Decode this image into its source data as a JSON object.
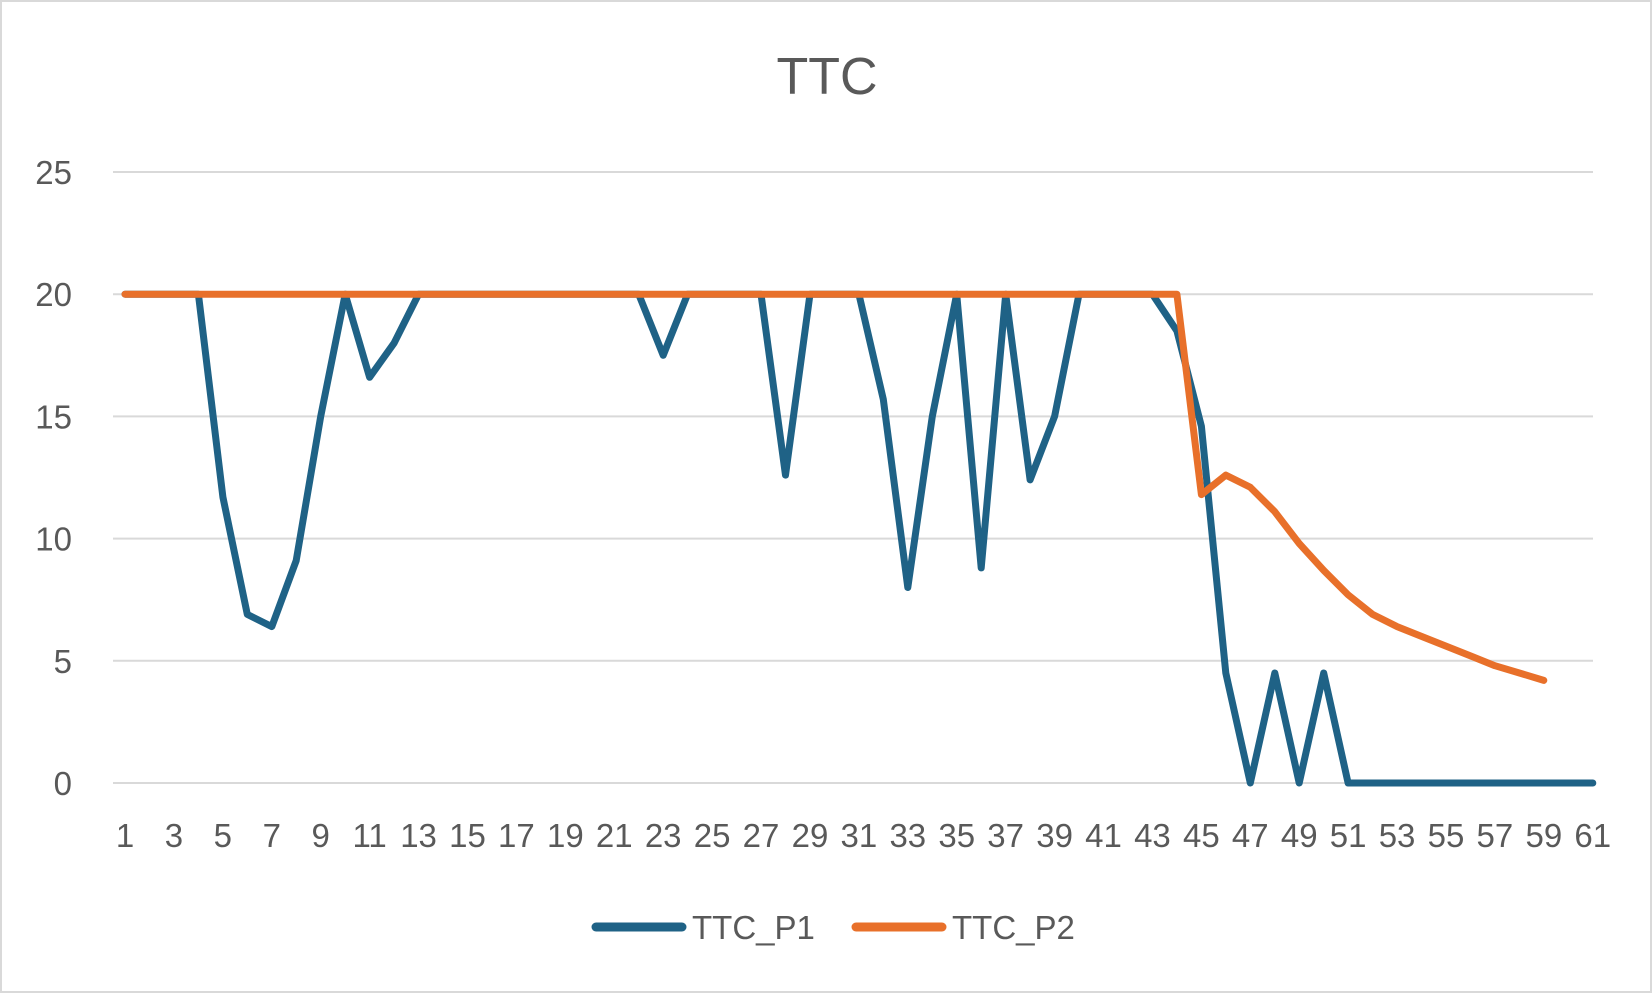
{
  "chart_data": {
    "type": "line",
    "title": "TTC",
    "xlabel": "",
    "ylabel": "",
    "ylim": [
      0,
      25
    ],
    "yticks": [
      0,
      5,
      10,
      15,
      20,
      25
    ],
    "x": [
      1,
      2,
      3,
      4,
      5,
      6,
      7,
      8,
      9,
      10,
      11,
      12,
      13,
      14,
      15,
      16,
      17,
      18,
      19,
      20,
      21,
      22,
      23,
      24,
      25,
      26,
      27,
      28,
      29,
      30,
      31,
      32,
      33,
      34,
      35,
      36,
      37,
      38,
      39,
      40,
      41,
      42,
      43,
      44,
      45,
      46,
      47,
      48,
      49,
      50,
      51,
      52,
      53,
      54,
      55,
      56,
      57,
      58,
      59,
      60,
      61
    ],
    "xtick_labels": [
      "1",
      "3",
      "5",
      "7",
      "9",
      "11",
      "13",
      "15",
      "17",
      "19",
      "21",
      "23",
      "25",
      "27",
      "29",
      "31",
      "33",
      "35",
      "37",
      "39",
      "41",
      "43",
      "45",
      "47",
      "49",
      "51",
      "53",
      "55",
      "57",
      "59",
      "61"
    ],
    "grid": true,
    "legend_position": "bottom",
    "series": [
      {
        "name": "TTC_P1",
        "color": "#1f6286",
        "values": [
          20,
          20,
          20,
          20,
          11.7,
          6.9,
          6.4,
          9.1,
          15,
          20,
          16.6,
          18,
          20,
          20,
          20,
          20,
          20,
          20,
          20,
          20,
          20,
          20,
          17.5,
          20,
          20,
          20,
          20,
          12.6,
          20,
          20,
          20,
          15.7,
          8,
          15,
          20,
          8.8,
          20,
          12.4,
          15,
          20,
          20,
          20,
          20,
          18.5,
          14.6,
          4.5,
          0,
          4.5,
          0,
          4.5,
          0,
          0,
          0,
          0,
          0,
          0,
          0,
          0,
          0,
          0,
          0
        ]
      },
      {
        "name": "TTC_P2",
        "color": "#e8702a",
        "values": [
          20,
          20,
          20,
          20,
          20,
          20,
          20,
          20,
          20,
          20,
          20,
          20,
          20,
          20,
          20,
          20,
          20,
          20,
          20,
          20,
          20,
          20,
          20,
          20,
          20,
          20,
          20,
          20,
          20,
          20,
          20,
          20,
          20,
          20,
          20,
          20,
          20,
          20,
          20,
          20,
          20,
          20,
          20,
          20,
          11.8,
          12.6,
          12.1,
          11.1,
          9.8,
          8.7,
          7.7,
          6.9,
          6.4,
          6,
          5.6,
          5.2,
          4.8,
          4.5,
          4.2,
          null,
          null
        ]
      }
    ]
  }
}
